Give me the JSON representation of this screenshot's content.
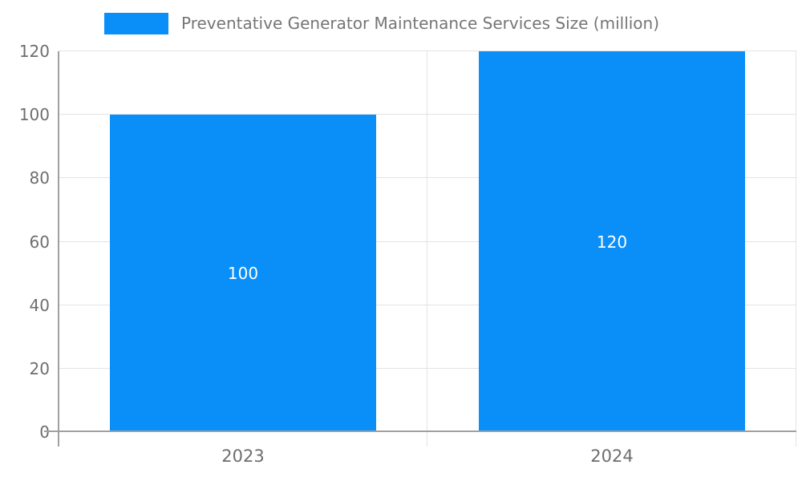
{
  "chart_data": {
    "type": "bar",
    "title": "Preventative Generator Maintenance Services Size (million)",
    "legend": {
      "label": "Preventative Generator Maintenance Services Size (million)",
      "position": "top"
    },
    "categories": [
      "2023",
      "2024"
    ],
    "values": [
      100,
      120
    ],
    "value_labels": [
      "100",
      "120"
    ],
    "xlabel": "",
    "ylabel": "",
    "ylim": [
      0,
      120
    ],
    "yticks": [
      0,
      20,
      40,
      60,
      80,
      100,
      120
    ],
    "grid": true,
    "bar_width_fraction": 0.72,
    "colors": {
      "bar": "#0A8FF9",
      "bar_label": "#FFFFFF",
      "legend_text": "#757575",
      "tick_text": "#6E6E6E",
      "gridline": "#E3E3E3",
      "axis_line": "#A0A0A0"
    }
  }
}
